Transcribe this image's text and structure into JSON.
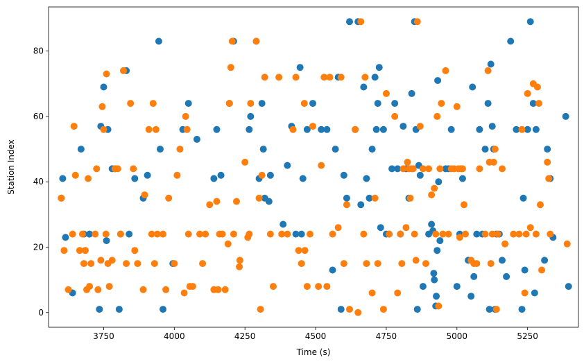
{
  "chart_data": {
    "type": "scatter",
    "title": "",
    "xlabel": "Time (s)",
    "ylabel": "Station Index",
    "xlim": [
      3555,
      5430
    ],
    "ylim": [
      -4.5,
      93.5
    ],
    "xticks": [
      3750,
      4000,
      4250,
      4500,
      4750,
      5000,
      5250
    ],
    "yticks": [
      0,
      20,
      40,
      60,
      80
    ],
    "grid": false,
    "legend": "none",
    "series": [
      {
        "color": "#1f77b4",
        "points": [
          [
            3600,
            35
          ],
          [
            3605,
            41
          ],
          [
            3615,
            23
          ],
          [
            3640,
            6
          ],
          [
            3670,
            50
          ],
          [
            3680,
            24
          ],
          [
            3700,
            24
          ],
          [
            3735,
            1
          ],
          [
            3740,
            57
          ],
          [
            3750,
            69
          ],
          [
            3760,
            22
          ],
          [
            3765,
            56
          ],
          [
            3780,
            44
          ],
          [
            3790,
            44
          ],
          [
            3805,
            1
          ],
          [
            3810,
            24
          ],
          [
            3830,
            74
          ],
          [
            3840,
            24
          ],
          [
            3860,
            41
          ],
          [
            3890,
            35
          ],
          [
            3905,
            42
          ],
          [
            3945,
            83
          ],
          [
            3950,
            50
          ],
          [
            3960,
            1
          ],
          [
            3995,
            15
          ],
          [
            4030,
            56
          ],
          [
            4050,
            64
          ],
          [
            4080,
            53
          ],
          [
            4140,
            41
          ],
          [
            4150,
            56
          ],
          [
            4165,
            42
          ],
          [
            4195,
            64
          ],
          [
            4210,
            83
          ],
          [
            4265,
            56
          ],
          [
            4270,
            60
          ],
          [
            4290,
            83
          ],
          [
            4300,
            41
          ],
          [
            4310,
            64
          ],
          [
            4315,
            50
          ],
          [
            4320,
            35
          ],
          [
            4335,
            34
          ],
          [
            4340,
            42
          ],
          [
            4385,
            27
          ],
          [
            4400,
            45
          ],
          [
            4415,
            57
          ],
          [
            4430,
            24
          ],
          [
            4445,
            75
          ],
          [
            4450,
            24
          ],
          [
            4455,
            41
          ],
          [
            4470,
            56
          ],
          [
            4490,
            64
          ],
          [
            4520,
            56
          ],
          [
            4540,
            56
          ],
          [
            4560,
            13
          ],
          [
            4570,
            50
          ],
          [
            4580,
            72
          ],
          [
            4590,
            1
          ],
          [
            4600,
            42
          ],
          [
            4610,
            35
          ],
          [
            4620,
            89
          ],
          [
            4640,
            56
          ],
          [
            4650,
            89
          ],
          [
            4660,
            33
          ],
          [
            4670,
            69
          ],
          [
            4680,
            41
          ],
          [
            4690,
            35
          ],
          [
            4700,
            50
          ],
          [
            4710,
            72
          ],
          [
            4715,
            56
          ],
          [
            4720,
            64
          ],
          [
            4725,
            75
          ],
          [
            4730,
            26
          ],
          [
            4740,
            56
          ],
          [
            4750,
            24
          ],
          [
            4760,
            24
          ],
          [
            4770,
            44
          ],
          [
            4780,
            64
          ],
          [
            4790,
            44
          ],
          [
            4800,
            24
          ],
          [
            4810,
            57
          ],
          [
            4820,
            44
          ],
          [
            4830,
            35
          ],
          [
            4840,
            67
          ],
          [
            4850,
            89
          ],
          [
            4855,
            56
          ],
          [
            4860,
            1
          ],
          [
            4865,
            45
          ],
          [
            4870,
            42
          ],
          [
            4880,
            8
          ],
          [
            4900,
            24
          ],
          [
            4910,
            27
          ],
          [
            4915,
            25
          ],
          [
            4918,
            12
          ],
          [
            4920,
            10
          ],
          [
            4925,
            2
          ],
          [
            4927,
            5
          ],
          [
            4930,
            19
          ],
          [
            4932,
            71
          ],
          [
            4935,
            40
          ],
          [
            4940,
            22
          ],
          [
            4960,
            44
          ],
          [
            4970,
            44
          ],
          [
            4980,
            56
          ],
          [
            5000,
            8
          ],
          [
            5010,
            24
          ],
          [
            5020,
            41
          ],
          [
            5040,
            16
          ],
          [
            5050,
            5
          ],
          [
            5055,
            69
          ],
          [
            5060,
            11
          ],
          [
            5070,
            24
          ],
          [
            5080,
            56
          ],
          [
            5090,
            24
          ],
          [
            5100,
            50
          ],
          [
            5110,
            64
          ],
          [
            5115,
            1
          ],
          [
            5120,
            76
          ],
          [
            5125,
            57
          ],
          [
            5130,
            50
          ],
          [
            5135,
            1
          ],
          [
            5140,
            24
          ],
          [
            5150,
            24
          ],
          [
            5160,
            16
          ],
          [
            5175,
            11
          ],
          [
            5190,
            83
          ],
          [
            5210,
            56
          ],
          [
            5230,
            1
          ],
          [
            5235,
            35
          ],
          [
            5240,
            13
          ],
          [
            5250,
            56
          ],
          [
            5260,
            89
          ],
          [
            5270,
            64
          ],
          [
            5275,
            6
          ],
          [
            5280,
            56
          ],
          [
            5310,
            16
          ],
          [
            5320,
            50
          ],
          [
            5330,
            41
          ],
          [
            5340,
            23
          ],
          [
            5385,
            60
          ],
          [
            5395,
            8
          ]
        ]
      },
      {
        "color": "#ff7f0e",
        "points": [
          [
            3600,
            35
          ],
          [
            3610,
            19
          ],
          [
            3625,
            7
          ],
          [
            3640,
            24
          ],
          [
            3645,
            57
          ],
          [
            3650,
            42
          ],
          [
            3665,
            19
          ],
          [
            3675,
            24
          ],
          [
            3680,
            15
          ],
          [
            3685,
            19
          ],
          [
            3690,
            7
          ],
          [
            3695,
            41
          ],
          [
            3700,
            8
          ],
          [
            3705,
            15
          ],
          [
            3720,
            24
          ],
          [
            3725,
            44
          ],
          [
            3730,
            7
          ],
          [
            3740,
            16
          ],
          [
            3745,
            63
          ],
          [
            3750,
            56
          ],
          [
            3758,
            24
          ],
          [
            3760,
            73
          ],
          [
            3765,
            15
          ],
          [
            3770,
            8
          ],
          [
            3780,
            16
          ],
          [
            3790,
            44
          ],
          [
            3800,
            44
          ],
          [
            3810,
            24
          ],
          [
            3820,
            74
          ],
          [
            3830,
            15
          ],
          [
            3845,
            64
          ],
          [
            3855,
            44
          ],
          [
            3860,
            19
          ],
          [
            3870,
            15
          ],
          [
            3890,
            7
          ],
          [
            3895,
            36
          ],
          [
            3910,
            56
          ],
          [
            3920,
            24
          ],
          [
            3925,
            64
          ],
          [
            3930,
            15
          ],
          [
            3935,
            56
          ],
          [
            3940,
            24
          ],
          [
            3960,
            24
          ],
          [
            3970,
            7
          ],
          [
            3980,
            35
          ],
          [
            4000,
            15
          ],
          [
            4010,
            42
          ],
          [
            4020,
            50
          ],
          [
            4035,
            6
          ],
          [
            4040,
            60
          ],
          [
            4045,
            56
          ],
          [
            4050,
            24
          ],
          [
            4055,
            8
          ],
          [
            4065,
            8
          ],
          [
            4090,
            24
          ],
          [
            4100,
            15
          ],
          [
            4110,
            24
          ],
          [
            4125,
            33
          ],
          [
            4140,
            7
          ],
          [
            4150,
            34
          ],
          [
            4155,
            7
          ],
          [
            4160,
            24
          ],
          [
            4170,
            24
          ],
          [
            4180,
            7
          ],
          [
            4190,
            21
          ],
          [
            4195,
            64
          ],
          [
            4200,
            75
          ],
          [
            4205,
            83
          ],
          [
            4210,
            24
          ],
          [
            4220,
            34
          ],
          [
            4230,
            14
          ],
          [
            4232,
            16
          ],
          [
            4250,
            46
          ],
          [
            4260,
            23
          ],
          [
            4265,
            24
          ],
          [
            4270,
            64
          ],
          [
            4290,
            83
          ],
          [
            4300,
            35
          ],
          [
            4305,
            1
          ],
          [
            4310,
            42
          ],
          [
            4320,
            72
          ],
          [
            4340,
            24
          ],
          [
            4350,
            8
          ],
          [
            4370,
            72
          ],
          [
            4380,
            24
          ],
          [
            4400,
            24
          ],
          [
            4420,
            56
          ],
          [
            4430,
            72
          ],
          [
            4440,
            19
          ],
          [
            4450,
            15
          ],
          [
            4460,
            64
          ],
          [
            4462,
            19
          ],
          [
            4470,
            8
          ],
          [
            4480,
            24
          ],
          [
            4490,
            57
          ],
          [
            4510,
            8
          ],
          [
            4520,
            45
          ],
          [
            4530,
            72
          ],
          [
            4540,
            8
          ],
          [
            4550,
            72
          ],
          [
            4560,
            24
          ],
          [
            4580,
            26
          ],
          [
            4590,
            72
          ],
          [
            4600,
            15
          ],
          [
            4610,
            33
          ],
          [
            4620,
            1
          ],
          [
            4640,
            56
          ],
          [
            4650,
            0
          ],
          [
            4660,
            89
          ],
          [
            4670,
            24
          ],
          [
            4675,
            72
          ],
          [
            4680,
            15
          ],
          [
            4700,
            6
          ],
          [
            4710,
            35
          ],
          [
            4720,
            15
          ],
          [
            4740,
            1
          ],
          [
            4750,
            67
          ],
          [
            4760,
            24
          ],
          [
            4780,
            60
          ],
          [
            4790,
            6
          ],
          [
            4800,
            24
          ],
          [
            4805,
            15
          ],
          [
            4810,
            44
          ],
          [
            4820,
            26
          ],
          [
            4825,
            46
          ],
          [
            4830,
            44
          ],
          [
            4835,
            35
          ],
          [
            4840,
            44
          ],
          [
            4845,
            44
          ],
          [
            4850,
            24
          ],
          [
            4855,
            16
          ],
          [
            4860,
            89
          ],
          [
            4870,
            57
          ],
          [
            4880,
            44
          ],
          [
            4890,
            15
          ],
          [
            4900,
            44
          ],
          [
            4910,
            36
          ],
          [
            4920,
            38
          ],
          [
            4925,
            24
          ],
          [
            4930,
            60
          ],
          [
            4935,
            2
          ],
          [
            4940,
            44
          ],
          [
            4945,
            64
          ],
          [
            4950,
            24
          ],
          [
            4960,
            74
          ],
          [
            4970,
            24
          ],
          [
            4980,
            44
          ],
          [
            4990,
            44
          ],
          [
            5000,
            63
          ],
          [
            5005,
            44
          ],
          [
            5010,
            23
          ],
          [
            5015,
            44
          ],
          [
            5020,
            44
          ],
          [
            5025,
            33
          ],
          [
            5030,
            24
          ],
          [
            5050,
            16
          ],
          [
            5060,
            15
          ],
          [
            5070,
            15
          ],
          [
            5080,
            44
          ],
          [
            5100,
            24
          ],
          [
            5110,
            74
          ],
          [
            5115,
            46
          ],
          [
            5120,
            15
          ],
          [
            5125,
            24
          ],
          [
            5130,
            46
          ],
          [
            5135,
            50
          ],
          [
            5140,
            1
          ],
          [
            5145,
            24
          ],
          [
            5160,
            44
          ],
          [
            5170,
            21
          ],
          [
            5200,
            24
          ],
          [
            5220,
            24
          ],
          [
            5230,
            56
          ],
          [
            5240,
            6
          ],
          [
            5245,
            24
          ],
          [
            5250,
            67
          ],
          [
            5260,
            26
          ],
          [
            5270,
            70
          ],
          [
            5280,
            24
          ],
          [
            5285,
            69
          ],
          [
            5290,
            64
          ],
          [
            5295,
            33
          ],
          [
            5300,
            13
          ],
          [
            5320,
            46
          ],
          [
            5325,
            41
          ],
          [
            5330,
            24
          ],
          [
            5390,
            21
          ]
        ]
      }
    ]
  }
}
